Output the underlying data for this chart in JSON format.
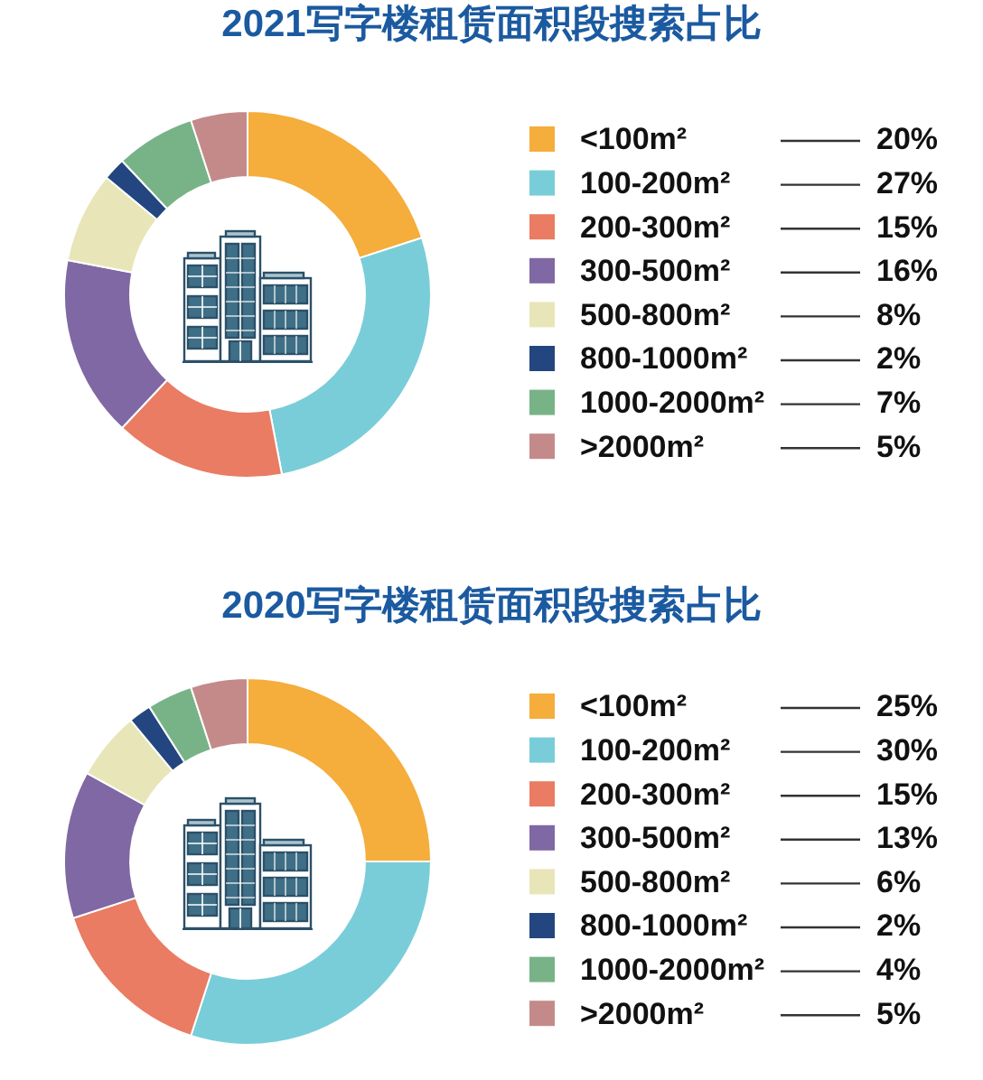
{
  "chart_data": [
    {
      "type": "donut",
      "title": "2021写字楼租赁面积段搜索占比",
      "categories": [
        "<100m²",
        "100-200m²",
        "200-300m²",
        "300-500m²",
        "500-800m²",
        "800-1000m²",
        "1000-2000m²",
        ">2000m²"
      ],
      "values": [
        20,
        27,
        15,
        16,
        8,
        2,
        7,
        5
      ],
      "value_labels": [
        "20%",
        "27%",
        "15%",
        "16%",
        "8%",
        "2%",
        "7%",
        "5%"
      ],
      "colors": [
        "#f5ad3b",
        "#79cdd9",
        "#e97c62",
        "#7f68a3",
        "#e8e6b8",
        "#234680",
        "#78b388",
        "#c48a8a"
      ],
      "legend": "right"
    },
    {
      "type": "donut",
      "title": "2020写字楼租赁面积段搜索占比",
      "categories": [
        "<100m²",
        "100-200m²",
        "200-300m²",
        "300-500m²",
        "500-800m²",
        "800-1000m²",
        "1000-2000m²",
        ">2000m²"
      ],
      "values": [
        25,
        30,
        15,
        13,
        6,
        2,
        4,
        5
      ],
      "value_labels": [
        "25%",
        "30%",
        "15%",
        "13%",
        "6%",
        "2%",
        "4%",
        "5%"
      ],
      "colors": [
        "#f5ad3b",
        "#79cdd9",
        "#e97c62",
        "#7f68a3",
        "#e8e6b8",
        "#234680",
        "#78b388",
        "#c48a8a"
      ],
      "legend": "right"
    }
  ]
}
